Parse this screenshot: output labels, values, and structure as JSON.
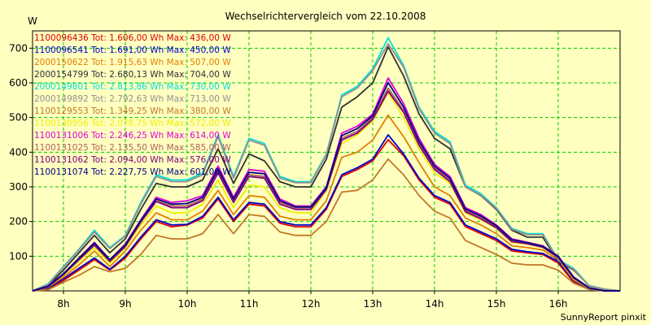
{
  "chart_data": {
    "type": "line",
    "title": "Wechselrichtervergleich vom 22.10.2008",
    "ylabel": "W",
    "xlabel": "",
    "footer": "SunnyReport pinxit",
    "xlim": [
      7.5,
      17.0
    ],
    "ylim": [
      0,
      750
    ],
    "x_ticks": [
      {
        "value": 8,
        "label": "8h"
      },
      {
        "value": 9,
        "label": "9h"
      },
      {
        "value": 10,
        "label": "10h"
      },
      {
        "value": 11,
        "label": "11h"
      },
      {
        "value": 12,
        "label": "12h"
      },
      {
        "value": 13,
        "label": "13h"
      },
      {
        "value": 14,
        "label": "14h"
      },
      {
        "value": 15,
        "label": "15h"
      },
      {
        "value": 16,
        "label": "16h"
      }
    ],
    "y_ticks": [
      100,
      200,
      300,
      400,
      500,
      600,
      700
    ],
    "grid": true,
    "legend_position": "top-left",
    "x": [
      7.5,
      7.75,
      8.0,
      8.25,
      8.5,
      8.75,
      9.0,
      9.25,
      9.5,
      9.75,
      10.0,
      10.25,
      10.5,
      10.75,
      11.0,
      11.25,
      11.5,
      11.75,
      12.0,
      12.25,
      12.5,
      12.75,
      13.0,
      13.25,
      13.5,
      13.75,
      14.0,
      14.25,
      14.5,
      14.75,
      15.0,
      15.25,
      15.5,
      15.75,
      16.0,
      16.25,
      16.5,
      16.75,
      17.0
    ],
    "series": [
      {
        "name": "1100096436",
        "label": "1100096436 Tot: 1.606,00 Wh Max: 436,00 W",
        "color": "#dd0000",
        "values": [
          0,
          5,
          30,
          60,
          90,
          60,
          95,
          150,
          200,
          185,
          190,
          210,
          265,
          200,
          250,
          245,
          195,
          185,
          185,
          235,
          330,
          350,
          375,
          436,
          390,
          320,
          270,
          250,
          185,
          165,
          145,
          115,
          110,
          105,
          80,
          25,
          5,
          0,
          0
        ]
      },
      {
        "name": "1100096541",
        "label": "1100096541 Tot: 1.691,00 Wh Max: 450,00 W",
        "color": "#0000cc",
        "values": [
          0,
          8,
          35,
          65,
          95,
          62,
          100,
          155,
          205,
          190,
          192,
          215,
          270,
          205,
          255,
          250,
          200,
          190,
          190,
          240,
          335,
          355,
          380,
          450,
          395,
          325,
          275,
          255,
          190,
          170,
          150,
          120,
          113,
          108,
          85,
          30,
          6,
          0,
          0
        ]
      },
      {
        "name": "2000150622",
        "label": "2000150622 Tot: 1.915,63 Wh Max: 507,00 W",
        "color": "#e08000",
        "values": [
          0,
          10,
          40,
          75,
          115,
          70,
          115,
          175,
          225,
          205,
          205,
          230,
          290,
          220,
          275,
          270,
          215,
          205,
          205,
          260,
          385,
          400,
          435,
          507,
          445,
          370,
          300,
          275,
          210,
          190,
          165,
          130,
          125,
          118,
          90,
          32,
          7,
          0,
          0
        ]
      },
      {
        "name": "2000154799",
        "label": "2000154799 Tot: 2.680,13 Wh Max: 704,00 W",
        "color": "#303030",
        "values": [
          0,
          15,
          60,
          110,
          160,
          110,
          150,
          235,
          310,
          300,
          300,
          320,
          410,
          310,
          395,
          375,
          315,
          300,
          300,
          380,
          530,
          560,
          600,
          704,
          620,
          510,
          440,
          410,
          300,
          275,
          235,
          175,
          155,
          155,
          85,
          60,
          15,
          5,
          0
        ]
      },
      {
        "name": "2000149801",
        "label": "2000149801 Tot: 2.813,86 Wh Max: 730,00 W",
        "color": "#00dddd",
        "values": [
          0,
          20,
          70,
          120,
          175,
          125,
          160,
          255,
          335,
          320,
          320,
          340,
          450,
          330,
          440,
          425,
          330,
          315,
          315,
          395,
          565,
          590,
          640,
          730,
          650,
          530,
          460,
          430,
          305,
          280,
          240,
          180,
          165,
          165,
          90,
          65,
          15,
          5,
          0
        ]
      },
      {
        "name": "2000149892",
        "label": "2000149892 Tot: 2.792,63 Wh Max: 713,00 W",
        "color": "#909090",
        "values": [
          0,
          18,
          68,
          118,
          170,
          122,
          158,
          250,
          330,
          315,
          315,
          335,
          445,
          325,
          435,
          420,
          325,
          312,
          312,
          392,
          560,
          585,
          635,
          713,
          645,
          525,
          455,
          425,
          300,
          276,
          238,
          178,
          162,
          162,
          88,
          62,
          14,
          5,
          0
        ]
      },
      {
        "name": "1100129553",
        "label": "1100129553 Tot: 1.349,25 Wh Max: 380,00 W",
        "color": "#c07828",
        "values": [
          0,
          3,
          25,
          45,
          70,
          55,
          65,
          105,
          160,
          150,
          150,
          165,
          220,
          165,
          220,
          215,
          170,
          160,
          160,
          200,
          285,
          290,
          320,
          380,
          335,
          275,
          230,
          210,
          145,
          125,
          105,
          80,
          75,
          75,
          60,
          22,
          4,
          0,
          0
        ]
      },
      {
        "name": "1100130956",
        "label": "1100130956 Tot: 2.078,75 Wh Max: 572,00 W",
        "color": "#eeee00",
        "values": [
          0,
          12,
          45,
          85,
          125,
          80,
          125,
          190,
          245,
          225,
          225,
          250,
          320,
          240,
          305,
          300,
          240,
          225,
          225,
          290,
          425,
          450,
          490,
          572,
          500,
          410,
          340,
          310,
          225,
          205,
          180,
          140,
          135,
          125,
          95,
          35,
          8,
          0,
          0
        ]
      },
      {
        "name": "1100131006",
        "label": "1100131006 Tot: 2.246,25 Wh Max: 614,00 W",
        "color": "#dd00dd",
        "values": [
          0,
          14,
          50,
          95,
          140,
          90,
          135,
          205,
          270,
          255,
          260,
          275,
          360,
          270,
          350,
          345,
          265,
          245,
          245,
          300,
          455,
          475,
          510,
          614,
          540,
          440,
          365,
          330,
          240,
          220,
          190,
          150,
          140,
          130,
          100,
          40,
          9,
          0,
          0
        ]
      },
      {
        "name": "1100131025",
        "label": "1100131025 Tot: 2.135,50 Wh Max: 585,00 W",
        "color": "#b06060",
        "values": [
          0,
          13,
          48,
          92,
          135,
          88,
          130,
          200,
          260,
          245,
          245,
          265,
          345,
          260,
          335,
          330,
          255,
          240,
          240,
          295,
          440,
          460,
          500,
          585,
          520,
          425,
          355,
          320,
          232,
          212,
          185,
          145,
          138,
          128,
          97,
          38,
          8,
          0,
          0
        ]
      },
      {
        "name": "1100131062",
        "label": "1100131062 Tot: 2.094,00 Wh Max: 576,00 W",
        "color": "#800080",
        "values": [
          0,
          12,
          47,
          90,
          132,
          85,
          128,
          198,
          258,
          240,
          240,
          260,
          340,
          255,
          330,
          325,
          250,
          235,
          235,
          292,
          435,
          455,
          495,
          576,
          515,
          420,
          350,
          315,
          228,
          208,
          182,
          142,
          136,
          126,
          96,
          37,
          8,
          0,
          0
        ]
      },
      {
        "name": "1100131074",
        "label": "1100131074 Tot: 2.227,75 Wh Max: 601,00 W",
        "color": "#000080",
        "values": [
          0,
          13,
          49,
          94,
          138,
          90,
          133,
          203,
          265,
          250,
          252,
          270,
          352,
          265,
          342,
          338,
          260,
          242,
          242,
          298,
          448,
          468,
          505,
          601,
          530,
          432,
          360,
          325,
          236,
          216,
          188,
          148,
          139,
          129,
          99,
          39,
          9,
          0,
          0
        ]
      }
    ]
  }
}
